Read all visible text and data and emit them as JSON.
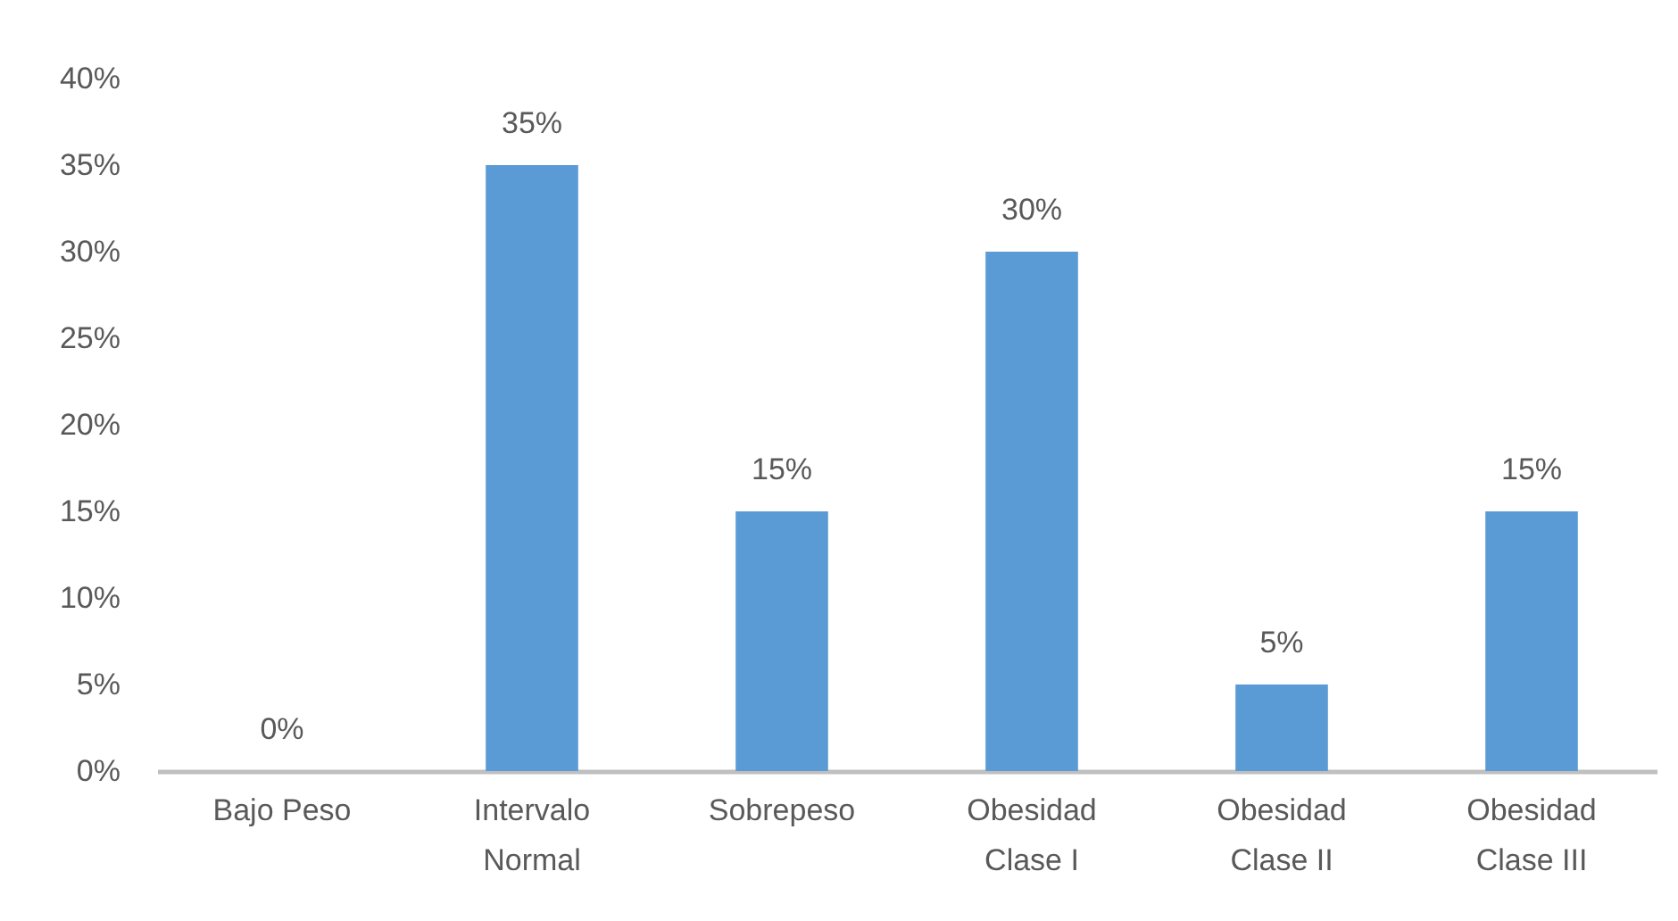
{
  "chart_data": {
    "type": "bar",
    "categories": [
      "Bajo Peso",
      "Intervalo Normal",
      "Sobrepeso",
      "Obesidad Clase I",
      "Obesidad Clase II",
      "Obesidad Clase III"
    ],
    "values": [
      0,
      35,
      15,
      30,
      5,
      15
    ],
    "value_labels": [
      "0%",
      "35%",
      "15%",
      "30%",
      "5%",
      "15%"
    ],
    "color": "#5b9bd5",
    "ylim": [
      0,
      40
    ],
    "yticks": [
      {
        "value": 0,
        "label": "0%"
      },
      {
        "value": 5,
        "label": "5%"
      },
      {
        "value": 10,
        "label": "10%"
      },
      {
        "value": 15,
        "label": "15%"
      },
      {
        "value": 20,
        "label": "20%"
      },
      {
        "value": 25,
        "label": "25%"
      },
      {
        "value": 30,
        "label": "30%"
      },
      {
        "value": 35,
        "label": "35%"
      },
      {
        "value": 40,
        "label": "40%"
      }
    ]
  }
}
